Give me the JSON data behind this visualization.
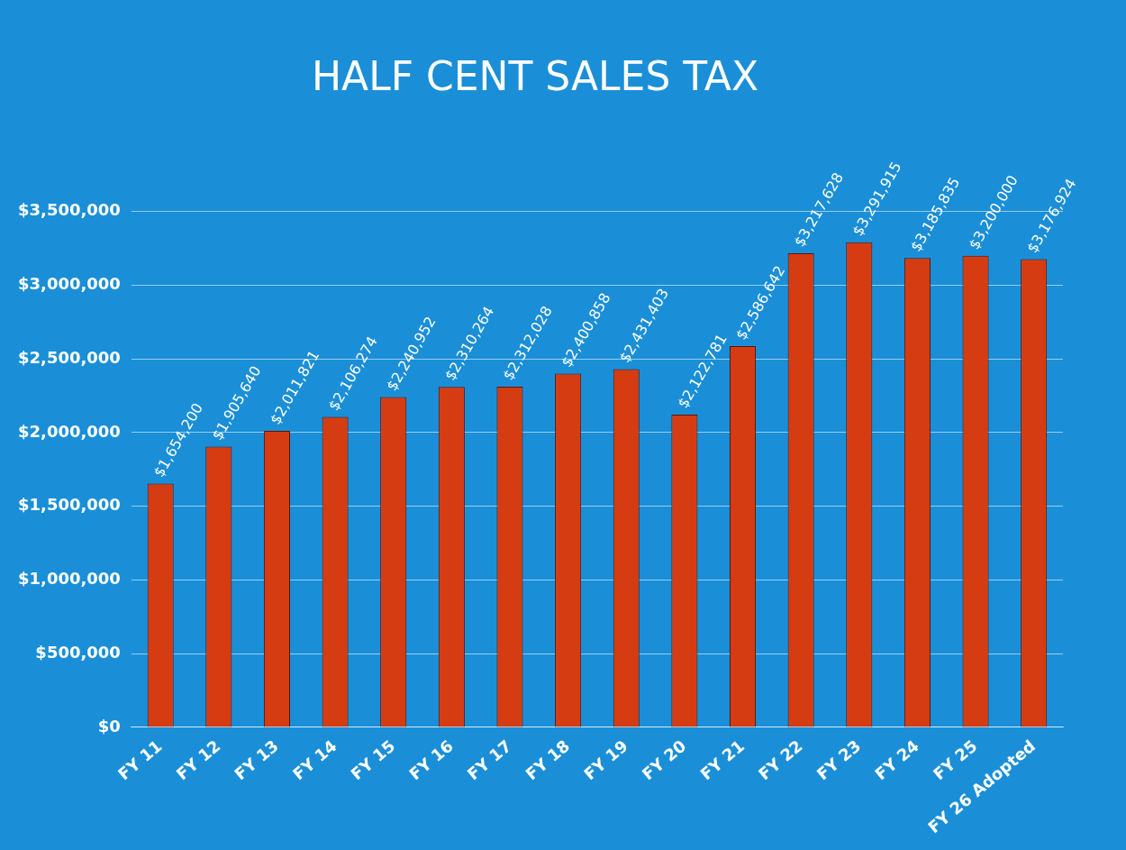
{
  "chart_data": {
    "type": "bar",
    "title": "HALF CENT SALES TAX",
    "categories": [
      "FY 11",
      "FY 12",
      "FY 13",
      "FY 14",
      "FY 15",
      "FY 16",
      "FY 17",
      "FY 18",
      "FY 19",
      "FY 20",
      "FY 21",
      "FY 22",
      "FY 23",
      "FY 24",
      "FY 25",
      "FY 26 Adopted"
    ],
    "values": [
      1654200,
      1905640,
      2011821,
      2106274,
      2240952,
      2310264,
      2312028,
      2400858,
      2431403,
      2122781,
      2586642,
      3217628,
      3291915,
      3185835,
      3200000,
      3176924
    ],
    "value_labels": [
      "$1,654,200",
      "$1,905,640",
      "$2,011,821",
      "$2,106,274",
      "$2,240,952",
      "$2,310,264",
      "$2,312,028",
      "$2,400,858",
      "$2,431,403",
      "$2,122,781",
      "$2,586,642",
      "$3,217,628",
      "$3,291,915",
      "$3,185,835",
      "$3,200,000",
      "$3,176,924"
    ],
    "color": "#d63c12",
    "ylim": [
      0,
      3500000
    ],
    "yticks": [
      {
        "value": 0,
        "label": "$0"
      },
      {
        "value": 500000,
        "label": "$500,000"
      },
      {
        "value": 1000000,
        "label": "$1,000,000"
      },
      {
        "value": 1500000,
        "label": "$1,500,000"
      },
      {
        "value": 2000000,
        "label": "$2,000,000"
      },
      {
        "value": 2500000,
        "label": "$2,500,000"
      },
      {
        "value": 3000000,
        "label": "$3,000,000"
      },
      {
        "value": 3500000,
        "label": "$3,500,000"
      }
    ],
    "grid": "y"
  }
}
